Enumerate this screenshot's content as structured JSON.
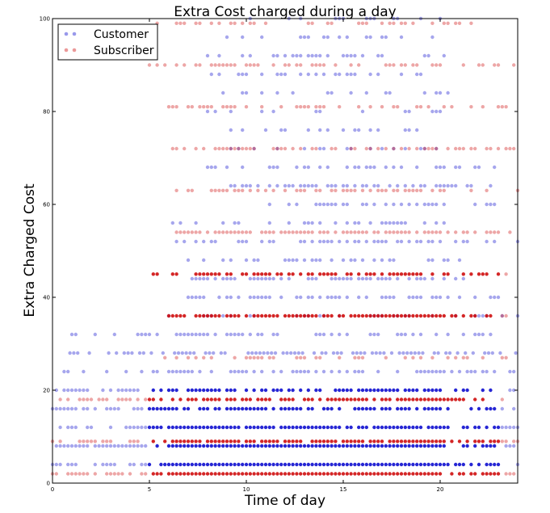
{
  "chart_data": {
    "type": "scatter",
    "title": "Extra Cost charged during a day",
    "xlabel": "Time of day",
    "ylabel": "Extra Charged Cost",
    "xlim": [
      0,
      24
    ],
    "ylim": [
      0,
      100
    ],
    "x_ticks": [
      0,
      5,
      10,
      15,
      20
    ],
    "y_ticks": [
      0,
      20,
      40,
      60,
      80,
      100
    ],
    "legend_position": "top-left",
    "grid": false,
    "series": [
      {
        "name": "Customer",
        "color": "#0000cc",
        "bands": [
          {
            "y": 4,
            "from": 0,
            "to": 24,
            "density": 1.0
          },
          {
            "y": 8,
            "from": 0,
            "to": 24,
            "density": 1.0
          },
          {
            "y": 12,
            "from": 0,
            "to": 24,
            "density": 0.95
          },
          {
            "y": 16,
            "from": 0,
            "to": 24,
            "density": 0.8
          },
          {
            "y": 20,
            "from": 0,
            "to": 24,
            "density": 0.75
          },
          {
            "y": 24,
            "from": 0,
            "to": 24,
            "density": 0.6
          },
          {
            "y": 28,
            "from": 0.5,
            "to": 24,
            "density": 0.65
          },
          {
            "y": 32,
            "from": 1,
            "to": 24,
            "density": 0.55
          },
          {
            "y": 36,
            "from": 6,
            "to": 24,
            "density": 0.4
          },
          {
            "y": 40,
            "from": 7,
            "to": 23,
            "density": 0.55
          },
          {
            "y": 44,
            "from": 7,
            "to": 22,
            "density": 0.6
          },
          {
            "y": 48,
            "from": 7,
            "to": 21,
            "density": 0.35
          },
          {
            "y": 52,
            "from": 6,
            "to": 24,
            "density": 0.5
          },
          {
            "y": 56,
            "from": 6,
            "to": 21,
            "density": 0.45
          },
          {
            "y": 60,
            "from": 9,
            "to": 23,
            "density": 0.4
          },
          {
            "y": 64,
            "from": 9,
            "to": 24,
            "density": 0.5
          },
          {
            "y": 68,
            "from": 8,
            "to": 23,
            "density": 0.4
          },
          {
            "y": 72,
            "from": 9,
            "to": 20,
            "density": 0.3
          },
          {
            "y": 76,
            "from": 9,
            "to": 19,
            "density": 0.3
          },
          {
            "y": 80,
            "from": 8,
            "to": 21,
            "density": 0.25
          },
          {
            "y": 84,
            "from": 8,
            "to": 21,
            "density": 0.3
          },
          {
            "y": 88,
            "from": 8,
            "to": 22,
            "density": 0.35
          },
          {
            "y": 92,
            "from": 8,
            "to": 21,
            "density": 0.3
          },
          {
            "y": 96,
            "from": 9,
            "to": 20,
            "density": 0.3
          },
          {
            "y": 100,
            "from": 10,
            "to": 20,
            "density": 0.25
          }
        ]
      },
      {
        "name": "Subscriber",
        "color": "#cc0000",
        "bands": [
          {
            "y": 2,
            "from": 0,
            "to": 24,
            "density": 1.0
          },
          {
            "y": 9,
            "from": 0,
            "to": 24,
            "density": 0.9
          },
          {
            "y": 18,
            "from": 0,
            "to": 24,
            "density": 0.85
          },
          {
            "y": 27,
            "from": 5,
            "to": 24,
            "density": 0.45
          },
          {
            "y": 36,
            "from": 6,
            "to": 24,
            "density": 0.85
          },
          {
            "y": 45,
            "from": 5,
            "to": 24,
            "density": 0.8
          },
          {
            "y": 54,
            "from": 6,
            "to": 24,
            "density": 0.7
          },
          {
            "y": 63,
            "from": 6,
            "to": 24,
            "density": 0.55
          },
          {
            "y": 72,
            "from": 6,
            "to": 24,
            "density": 0.6
          },
          {
            "y": 81,
            "from": 6,
            "to": 24,
            "density": 0.45
          },
          {
            "y": 90,
            "from": 5,
            "to": 24,
            "density": 0.45
          },
          {
            "y": 99,
            "from": 5,
            "to": 23,
            "density": 0.4
          }
        ]
      }
    ]
  }
}
